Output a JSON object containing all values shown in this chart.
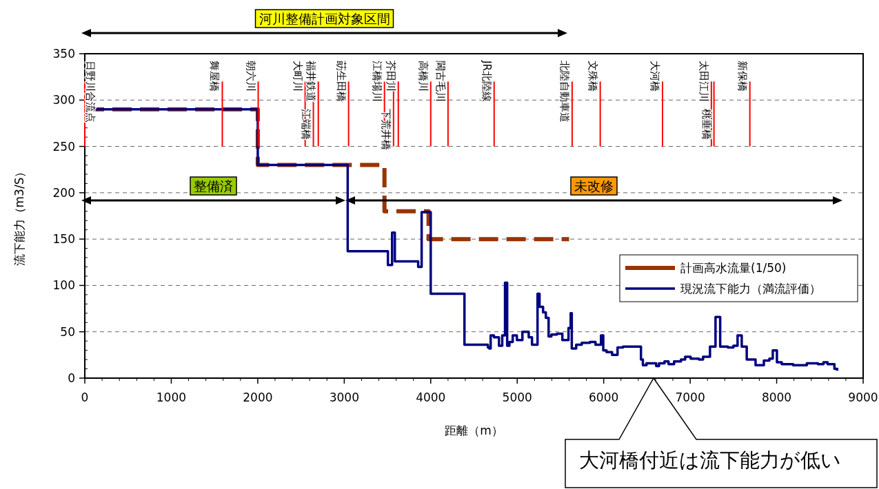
{
  "chart_data": {
    "type": "step",
    "xlabel": "距離（m）",
    "ylabel": "流下能力（m3/S）",
    "xlim": [
      0,
      9000
    ],
    "xticks": [
      0,
      1000,
      2000,
      3000,
      4000,
      5000,
      6000,
      7000,
      8000,
      9000
    ],
    "ylim": [
      0,
      350
    ],
    "yticks": [
      0,
      50,
      100,
      150,
      200,
      250,
      300,
      350
    ],
    "grid": "y",
    "legend": "right",
    "series": [
      {
        "name": "計画高水流量(1/50)",
        "color": "#993300",
        "line_style": "dashed",
        "x": [
          0,
          2000,
          3465,
          3975,
          5600
        ],
        "values": [
          290,
          230,
          180,
          150,
          150
        ]
      },
      {
        "name": "現況流下能力（満流評価）",
        "color": "#000080",
        "line_style": "solid",
        "x": [
          0,
          2000,
          3040,
          3505,
          3553,
          3585,
          3855,
          3895,
          4000,
          4390,
          4661,
          4677,
          4693,
          4731,
          4789,
          4827,
          4859,
          4884,
          4910,
          4948,
          4996,
          5060,
          5133,
          5171,
          5235,
          5258,
          5299,
          5331,
          5363,
          5395,
          5459,
          5522,
          5593,
          5618,
          5631,
          5682,
          5746,
          5841,
          5905,
          5969,
          5995,
          6033,
          6097,
          6160,
          6224,
          6288,
          6431,
          6453,
          6495,
          6607,
          6640,
          6703,
          6750,
          6814,
          6894,
          6942,
          7005,
          7101,
          7149,
          7229,
          7293,
          7347,
          7436,
          7500,
          7548,
          7596,
          7654,
          7756,
          7852,
          7916,
          7955,
          8003,
          8059,
          8190,
          8285,
          8349,
          8477,
          8541,
          8589,
          8668,
          8700
        ],
        "values": [
          290,
          230,
          137,
          122,
          157,
          126,
          120,
          179,
          91,
          36,
          33,
          32,
          46,
          44,
          35,
          46,
          103,
          35,
          39,
          46,
          41,
          50,
          44,
          36,
          91,
          77,
          71,
          65,
          45,
          47,
          48,
          41,
          54,
          70,
          32,
          36,
          38,
          39,
          36,
          46,
          30,
          28,
          25,
          33,
          34,
          34,
          20,
          14,
          16,
          13,
          16,
          18,
          15,
          18,
          20,
          23,
          21,
          20,
          23,
          34,
          66,
          34,
          33,
          35,
          46,
          34,
          20,
          14,
          19,
          21,
          30,
          17,
          15,
          14,
          14,
          16,
          15,
          17,
          15,
          10,
          8
        ]
      }
    ],
    "ref_lines": [
      {
        "axis": "x",
        "value": 0,
        "label": "日野川合流点",
        "color": "#ff0000"
      },
      {
        "axis": "x",
        "value": 1590,
        "label": "舞屋橋",
        "color": "#ff0000"
      },
      {
        "axis": "x",
        "value": 2005,
        "label": "朝六川",
        "color": "#ff0000"
      },
      {
        "axis": "x",
        "value": 2548,
        "label": "大町川",
        "color": "#ff0000"
      },
      {
        "axis": "x",
        "value": 2643,
        "label": "江端橋",
        "color": "#ff0000"
      },
      {
        "axis": "x",
        "value": 2700,
        "label": "福井鉄道",
        "color": "#ff0000"
      },
      {
        "axis": "x",
        "value": 3050,
        "label": "莇生田橋",
        "color": "#ff0000"
      },
      {
        "axis": "x",
        "value": 3465,
        "label": "江橋場川",
        "color": "#ff0000"
      },
      {
        "axis": "x",
        "value": 3570,
        "label": "下荒井橋",
        "color": "#ff0000"
      },
      {
        "axis": "x",
        "value": 3625,
        "label": "芥田川",
        "color": "#ff0000"
      },
      {
        "axis": "x",
        "value": 4000,
        "label": "高橋川",
        "color": "#ff0000"
      },
      {
        "axis": "x",
        "value": 4200,
        "label": "閪古毛川",
        "color": "#ff0000"
      },
      {
        "axis": "x",
        "value": 4733,
        "label": "JR北陸線",
        "color": "#ff0000"
      },
      {
        "axis": "x",
        "value": 5635,
        "label": "北陸自動車道",
        "color": "#ff0000"
      },
      {
        "axis": "x",
        "value": 5960,
        "label": "文殊橋",
        "color": "#ff0000"
      },
      {
        "axis": "x",
        "value": 6680,
        "label": "大河橋",
        "color": "#ff0000"
      },
      {
        "axis": "x",
        "value": 7245,
        "label": "太田江川",
        "color": "#ff0000"
      },
      {
        "axis": "x",
        "value": 7275,
        "label": "桃垂橋",
        "color": "#ff0000"
      },
      {
        "axis": "x",
        "value": 7690,
        "label": "新保橋",
        "color": "#ff0000"
      }
    ],
    "annotations": [
      "河川整備計画対象区間",
      "整備済",
      "未改修",
      "大河橋付近は流下能力が低い"
    ]
  }
}
